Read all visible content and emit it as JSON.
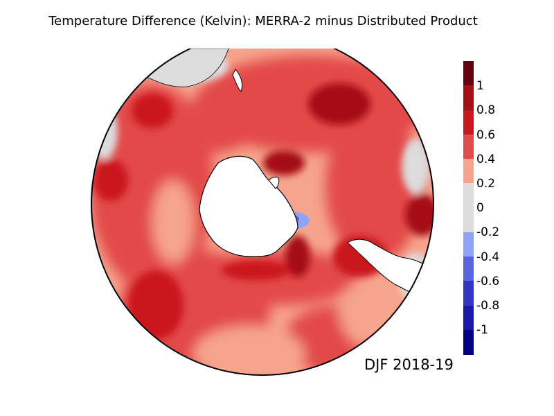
{
  "title": "Temperature Difference (Kelvin): MERRA-2 minus Distributed Product",
  "season_label": "DJF 2018-19",
  "map": {
    "projection": "south-polar-orthographic",
    "land_color": "#ffffff",
    "coastline_color": "#000000",
    "dominant_signal": "0.2 to 0.8 warm bias over Southern Ocean",
    "negative_region": "Weddell Sea coastal -0.2 to -0.4"
  },
  "colorbar": {
    "segments": [
      {
        "color": "#67000d",
        "range": "above 1"
      },
      {
        "color": "#a50f15",
        "range": "0.8 to 1"
      },
      {
        "color": "#cb181d",
        "range": "0.6 to 0.8"
      },
      {
        "color": "#e34a4a",
        "range": "0.4 to 0.6"
      },
      {
        "color": "#f6a48d",
        "range": "0.2 to 0.4"
      },
      {
        "color": "#dcdcdc",
        "range": "0 to 0.2"
      },
      {
        "color": "#dcdcdc",
        "range": "-0.2 to 0"
      },
      {
        "color": "#8fa4f5",
        "range": "-0.4 to -0.2"
      },
      {
        "color": "#5a66e0",
        "range": "-0.6 to -0.4"
      },
      {
        "color": "#3236c4",
        "range": "-0.8 to -0.6"
      },
      {
        "color": "#1a1aa8",
        "range": "-1 to -0.8"
      },
      {
        "color": "#000080",
        "range": "below -1"
      }
    ],
    "labels": [
      "1",
      "0.8",
      "0.6",
      "0.4",
      "0.2",
      "0",
      "-0.2",
      "-0.4",
      "-0.6",
      "-0.8",
      "-1"
    ]
  }
}
